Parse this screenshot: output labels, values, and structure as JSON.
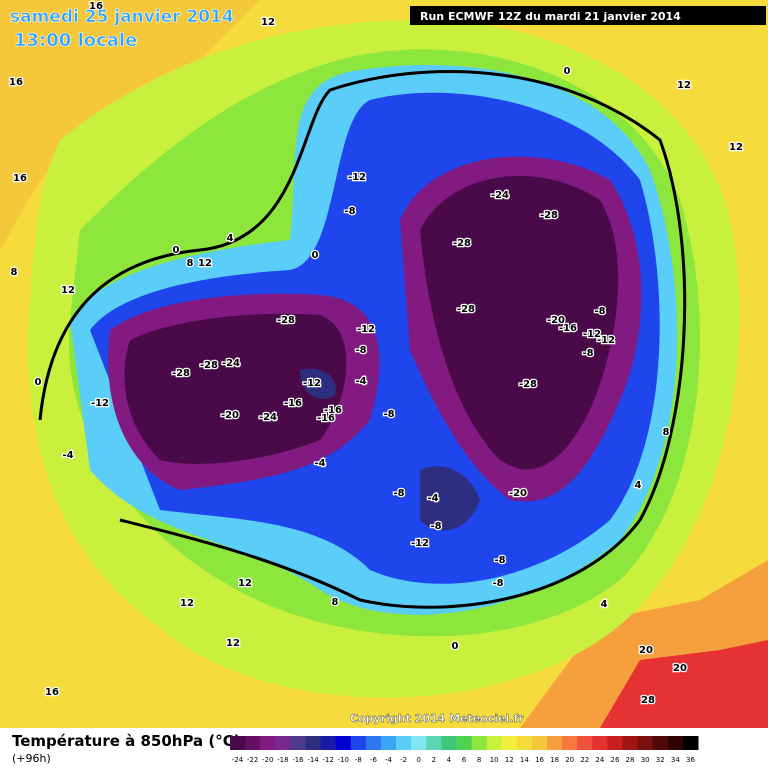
{
  "header": {
    "date": "samedi 25 janvier 2014",
    "time": "13:00 locale",
    "run": "Run ECMWF 12Z du mardi 21 janvier 2014"
  },
  "map": {
    "labels": [
      "-24",
      "-28",
      "-28",
      "-28",
      "-28",
      "-20",
      "-20",
      "-16",
      "-12",
      "-12",
      "-8",
      "-8",
      "-12",
      "-8",
      "-12",
      "-8",
      "-28",
      "-28",
      "-28",
      "-24",
      "-20",
      "-24",
      "-16",
      "-12",
      "-16",
      "-16",
      "-4",
      "-8",
      "-12",
      "-4",
      "-4",
      "-8",
      "-4",
      "-12",
      "-8",
      "-8",
      "-8",
      "4",
      "0",
      "0",
      "0",
      "4",
      "8",
      "12",
      "12",
      "12",
      "12",
      "12",
      "12",
      "12",
      "16",
      "16",
      "16",
      "16",
      "16",
      "12",
      "8",
      "8",
      "20",
      "20",
      "28",
      "0",
      "0",
      "4",
      "8"
    ]
  },
  "footer": {
    "title": "Température à 850hPa (°C)",
    "lead": "(+96h)",
    "copyright": "Copyright 2014 Meteociel.fr"
  },
  "legend": {
    "steps": [
      {
        "label": -24,
        "color": "#4a0a4a"
      },
      {
        "label": -22,
        "color": "#640f64"
      },
      {
        "label": -20,
        "color": "#821a82"
      },
      {
        "label": -18,
        "color": "#7a2890"
      },
      {
        "label": -16,
        "color": "#503a8c"
      },
      {
        "label": -14,
        "color": "#2e2e80"
      },
      {
        "label": -12,
        "color": "#1a1aa8"
      },
      {
        "label": -10,
        "color": "#0000d2"
      },
      {
        "label": -8,
        "color": "#1e46ec"
      },
      {
        "label": -6,
        "color": "#2d78f2"
      },
      {
        "label": -4,
        "color": "#3ca5f5"
      },
      {
        "label": -2,
        "color": "#5acdf8"
      },
      {
        "label": 0,
        "color": "#80e6f0"
      },
      {
        "label": 2,
        "color": "#5cd6b4"
      },
      {
        "label": 4,
        "color": "#3cc878"
      },
      {
        "label": 6,
        "color": "#50d250"
      },
      {
        "label": 8,
        "color": "#8ce63c"
      },
      {
        "label": 10,
        "color": "#c8f03c"
      },
      {
        "label": 12,
        "color": "#f0f03c"
      },
      {
        "label": 14,
        "color": "#f5dc3c"
      },
      {
        "label": 16,
        "color": "#f5c83c"
      },
      {
        "label": 18,
        "color": "#f5a03c"
      },
      {
        "label": 20,
        "color": "#f5783c"
      },
      {
        "label": 22,
        "color": "#f0503c"
      },
      {
        "label": 24,
        "color": "#e63232"
      },
      {
        "label": 26,
        "color": "#c81e1e"
      },
      {
        "label": 28,
        "color": "#a01414"
      },
      {
        "label": 30,
        "color": "#781010"
      },
      {
        "label": 32,
        "color": "#500808"
      },
      {
        "label": 34,
        "color": "#300404"
      },
      {
        "label": 36,
        "color": "#000000"
      }
    ]
  }
}
